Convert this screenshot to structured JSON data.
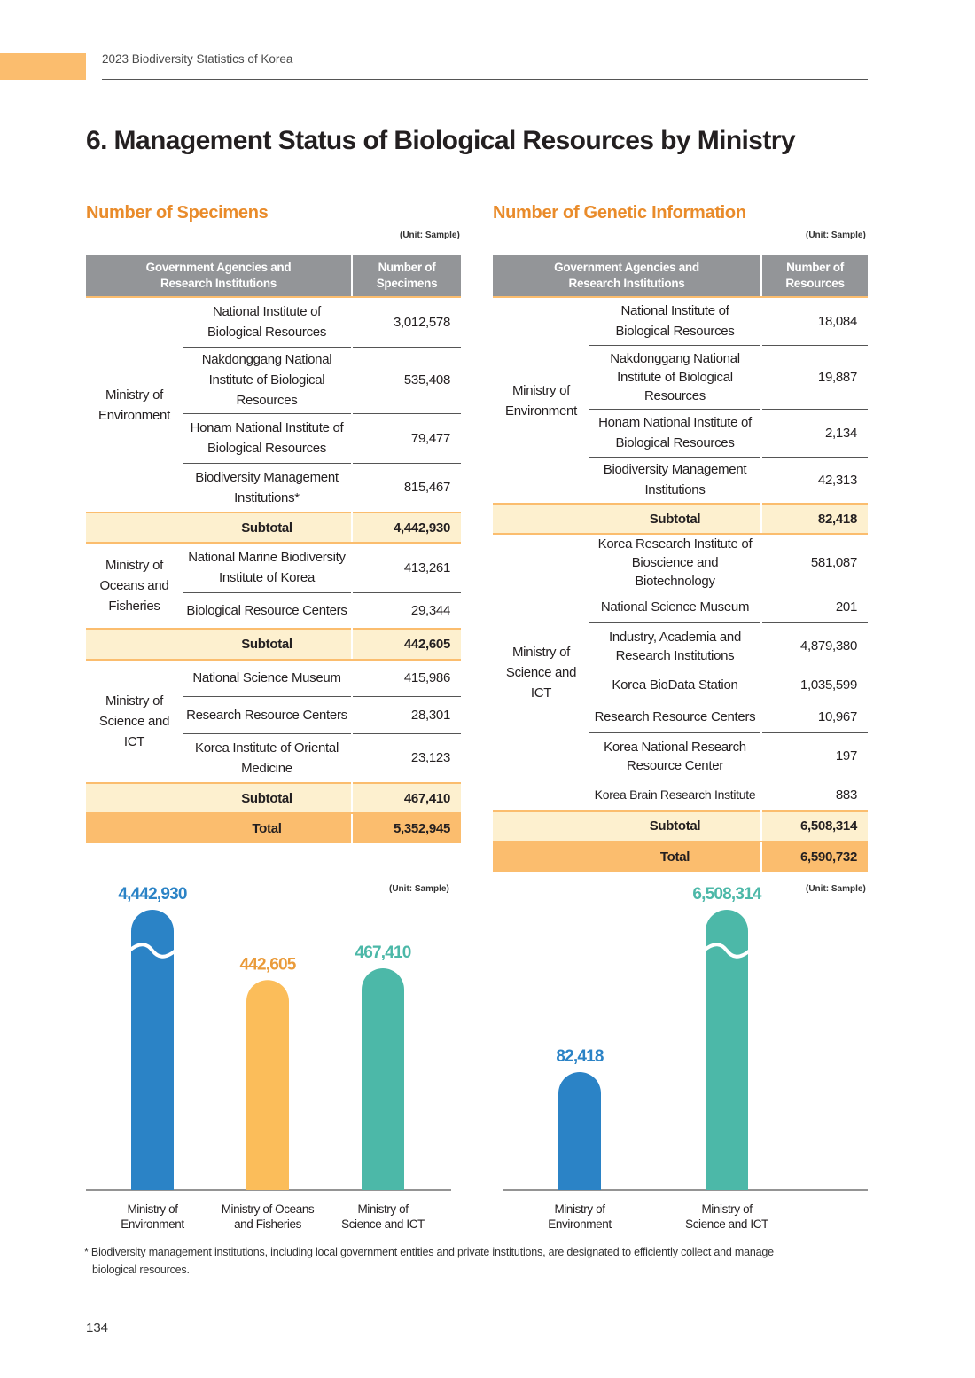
{
  "header": {
    "running_head": "2023 Biodiversity Statistics of Korea",
    "page_title": "6. Management Status of Biological Resources by Ministry"
  },
  "specimens": {
    "title": "Number of Specimens",
    "unit": "(Unit: Sample)",
    "col1": [
      "Government Agencies and",
      "Research Institutions"
    ],
    "col2": [
      "Number of",
      "Specimens"
    ],
    "groups": [
      {
        "ministry": [
          "Ministry of",
          "Environment"
        ],
        "rows": [
          {
            "inst": [
              "National Institute of",
              "Biological Resources"
            ],
            "value": "3,012,578"
          },
          {
            "inst": [
              "Nakdonggang National",
              "Institute of Biological",
              "Resources"
            ],
            "value": "535,408"
          },
          {
            "inst": [
              "Honam National Institute of",
              "Biological Resources"
            ],
            "value": "79,477"
          },
          {
            "inst": [
              "Biodiversity Management",
              "Institutions*"
            ],
            "value": "815,467"
          }
        ],
        "subtotal": "4,442,930"
      },
      {
        "ministry": [
          "Ministry of",
          "Oceans and",
          "Fisheries"
        ],
        "rows": [
          {
            "inst": [
              "National Marine Biodiversity",
              "Institute of Korea"
            ],
            "value": "413,261"
          },
          {
            "inst": [
              "Biological Resource Centers"
            ],
            "value": "29,344"
          }
        ],
        "subtotal": "442,605"
      },
      {
        "ministry": [
          "Ministry of",
          "Science and",
          "ICT"
        ],
        "rows": [
          {
            "inst": [
              "National Science Museum"
            ],
            "value": "415,986"
          },
          {
            "inst": [
              "Research Resource Centers"
            ],
            "value": "28,301"
          },
          {
            "inst": [
              "Korea Institute of Oriental",
              "Medicine"
            ],
            "value": "23,123"
          }
        ],
        "subtotal": "467,410"
      }
    ],
    "subtotal_label": "Subtotal",
    "total_label": "Total",
    "total": "5,352,945"
  },
  "genetic": {
    "title": "Number of Genetic Information",
    "unit": "(Unit: Sample)",
    "col1": [
      "Government Agencies and",
      "Research Institutions"
    ],
    "col2": [
      "Number of",
      "Resources"
    ],
    "groups": [
      {
        "ministry": [
          "Ministry of",
          "Environment"
        ],
        "rows": [
          {
            "inst": [
              "National Institute of",
              "Biological Resources"
            ],
            "value": "18,084"
          },
          {
            "inst": [
              "Nakdonggang National",
              "Institute of Biological",
              "Resources"
            ],
            "value": "19,887"
          },
          {
            "inst": [
              "Honam National Institute of",
              "Biological Resources"
            ],
            "value": "2,134"
          },
          {
            "inst": [
              "Biodiversity Management",
              "Institutions"
            ],
            "value": "42,313"
          }
        ],
        "subtotal": "82,418"
      },
      {
        "ministry": [
          "Ministry of",
          "Science and",
          "ICT"
        ],
        "rows": [
          {
            "inst": [
              "Korea Research Institute of",
              "Bioscience and Biotechnology"
            ],
            "value": "581,087"
          },
          {
            "inst": [
              "National Science Museum"
            ],
            "value": "201"
          },
          {
            "inst": [
              "Industry, Academia and",
              "Research Institutions"
            ],
            "value": "4,879,380"
          },
          {
            "inst": [
              "Korea BioData Station"
            ],
            "value": "1,035,599"
          },
          {
            "inst": [
              "Research Resource Centers"
            ],
            "value": "10,967"
          },
          {
            "inst": [
              "Korea National Research",
              "Resource Center"
            ],
            "value": "197"
          },
          {
            "inst": [
              "Korea Brain Research Institute"
            ],
            "value": "883"
          }
        ],
        "subtotal": "6,508,314"
      }
    ],
    "subtotal_label": "Subtotal",
    "total_label": "Total",
    "total": "6,590,732"
  },
  "chart_data": [
    {
      "type": "bar",
      "unit": "(Unit: Sample)",
      "categories": [
        [
          "Ministry of",
          "Environment"
        ],
        [
          "Ministry of Oceans",
          "and Fisheries"
        ],
        [
          "Ministry of",
          "Science and ICT"
        ]
      ],
      "values": [
        4442930,
        442605,
        467410
      ],
      "value_labels": [
        "4,442,930",
        "442,605",
        "467,410"
      ],
      "colors": [
        "#2b83c6",
        "#fbbd5a",
        "#4cb8a8"
      ],
      "label_colors": [
        "#2b83c6",
        "#ea9b3a",
        "#4cb8a8"
      ],
      "axis_break": [
        true,
        false,
        false
      ]
    },
    {
      "type": "bar",
      "unit": "(Unit: Sample)",
      "categories": [
        [
          "Ministry of",
          "Environment"
        ],
        [
          "Ministry of",
          "Science and ICT"
        ]
      ],
      "values": [
        82418,
        6508314
      ],
      "value_labels": [
        "82,418",
        "6,508,314"
      ],
      "colors": [
        "#2b83c6",
        "#4cb8a8"
      ],
      "label_colors": [
        "#2b83c6",
        "#4cb8a8"
      ],
      "axis_break": [
        false,
        true
      ]
    }
  ],
  "footnote": [
    "* Biodiversity management institutions, including local government entities and private institutions, are designated to efficiently collect and manage",
    "biological resources."
  ],
  "page_number": "134"
}
